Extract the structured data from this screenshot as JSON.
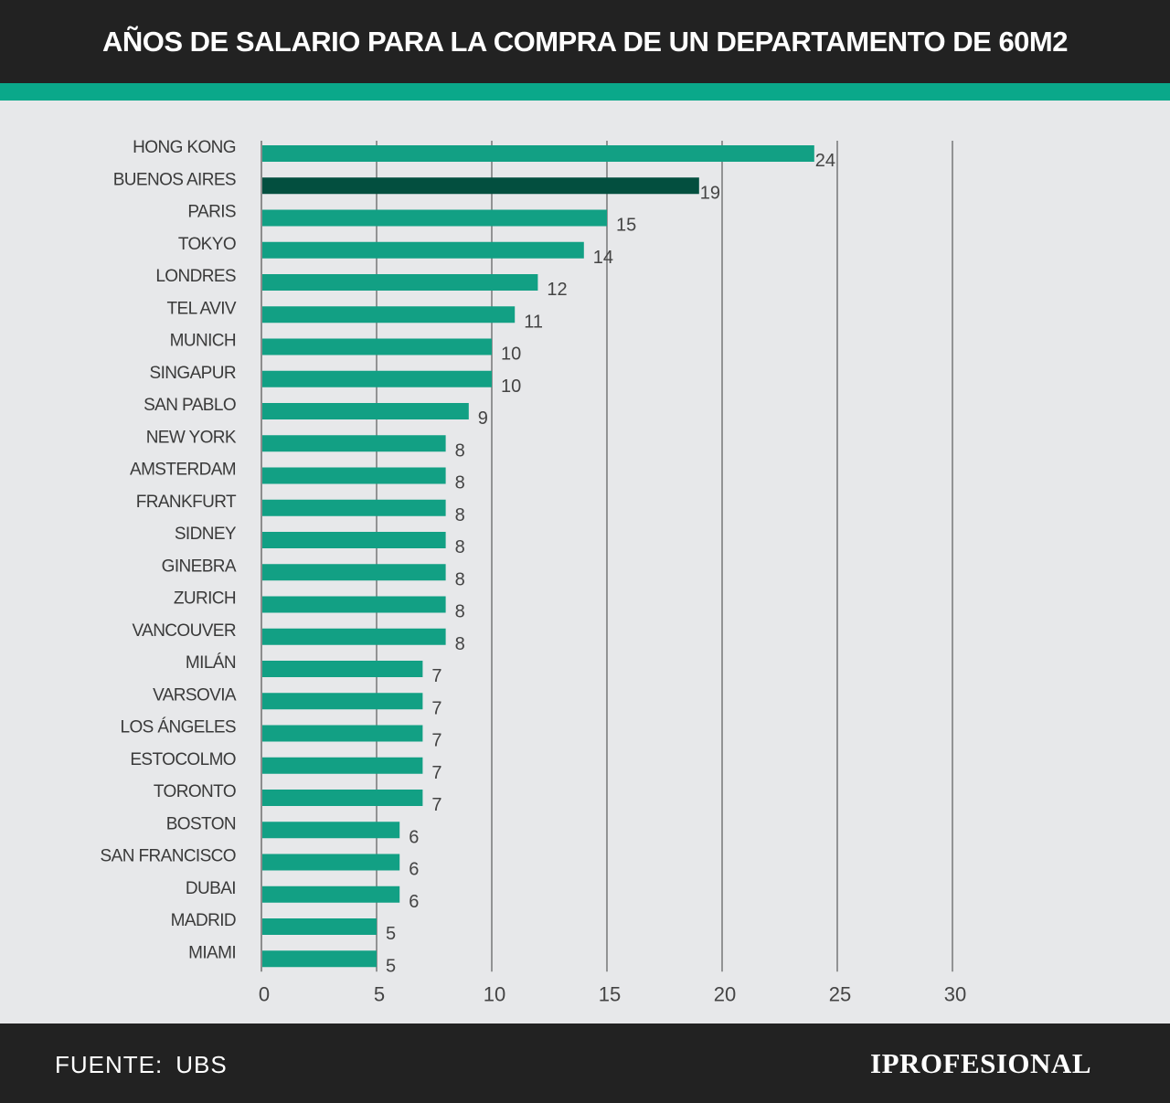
{
  "header": {
    "title": "AÑOS DE SALARIO PARA LA COMPRA DE UN DEPARTAMENTO DE 60M2"
  },
  "footer": {
    "source_label": "FUENTE:",
    "source_value": "UBS",
    "brand": "IPROFESIONAL"
  },
  "colors": {
    "bar": "#12a084",
    "highlight": "#034f3f",
    "header_bg": "#222222",
    "accent": "#0aa88a",
    "background": "#e7e8ea"
  },
  "chart_data": {
    "type": "bar",
    "orientation": "horizontal",
    "title": "AÑOS DE SALARIO PARA LA COMPRA DE UN DEPARTAMENTO DE 60M2",
    "xlabel": "",
    "ylabel": "",
    "xlim": [
      0,
      30
    ],
    "x_ticks": [
      0,
      5,
      10,
      15,
      20,
      25,
      30
    ],
    "grid": true,
    "highlight_category": "BUENOS AIRES",
    "categories": [
      "HONG KONG",
      "BUENOS AIRES",
      "PARIS",
      "TOKYO",
      "LONDRES",
      "TEL AVIV",
      "MUNICH",
      "SINGAPUR",
      "SAN PABLO",
      "NEW YORK",
      "AMSTERDAM",
      "FRANKFURT",
      "SIDNEY",
      "GINEBRA",
      "ZURICH",
      "VANCOUVER",
      "MILÁN",
      "VARSOVIA",
      "LOS ÁNGELES",
      "ESTOCOLMO",
      "TORONTO",
      "BOSTON",
      "SAN FRANCISCO",
      "DUBAI",
      "MADRID",
      "MIAMI"
    ],
    "values": [
      24,
      19,
      15,
      14,
      12,
      11,
      10,
      10,
      9,
      8,
      8,
      8,
      8,
      8,
      8,
      8,
      7,
      7,
      7,
      7,
      7,
      6,
      6,
      6,
      5,
      5
    ]
  }
}
